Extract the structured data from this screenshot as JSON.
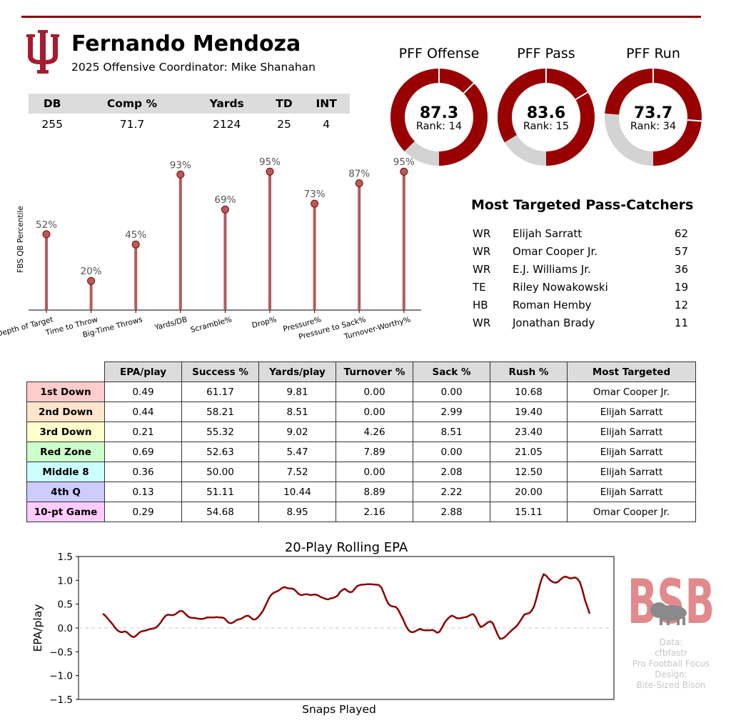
{
  "header": {
    "player_name": "Fernando Mendoza",
    "oc_line": "2025 Offensive Coordinator: Mike Shanahan",
    "logo_icon": "indiana-iu-trident-logo"
  },
  "colors": {
    "accent": "#990000",
    "ring_bg": "#d3d3d3",
    "lollipop": "#b35c5c",
    "muted": "#c6c6c6"
  },
  "summary_stats": {
    "headers": [
      "DB",
      "Comp %",
      "Yards",
      "TD",
      "INT"
    ],
    "values": [
      "255",
      "71.7",
      "2124",
      "25",
      "4"
    ]
  },
  "pff_grades": [
    {
      "title": "PFF Offense",
      "grade": "87.3",
      "rank": "Rank: 14",
      "value": 87.3
    },
    {
      "title": "PFF Pass",
      "grade": "83.6",
      "rank": "Rank: 15",
      "value": 83.6
    },
    {
      "title": "PFF Run",
      "grade": "73.7",
      "rank": "Rank: 34",
      "value": 73.7
    }
  ],
  "most_targeted": {
    "title": "Most Targeted Pass-Catchers",
    "rows": [
      {
        "pos": "WR",
        "name": "Elijah Sarratt",
        "targets": "62"
      },
      {
        "pos": "WR",
        "name": "Omar Cooper Jr.",
        "targets": "57"
      },
      {
        "pos": "WR",
        "name": "E.J. Williams Jr.",
        "targets": "36"
      },
      {
        "pos": "TE",
        "name": "Riley Nowakowski",
        "targets": "19"
      },
      {
        "pos": "HB",
        "name": "Roman Hemby",
        "targets": "12"
      },
      {
        "pos": "WR",
        "name": "Jonathan Brady",
        "targets": "11"
      }
    ]
  },
  "situational": {
    "headers": [
      "EPA/play",
      "Success %",
      "Yards/play",
      "Turnover %",
      "Sack %",
      "Rush %",
      "Most Targeted"
    ],
    "rows": [
      {
        "label": "1st Down",
        "color": "#ffcccc",
        "cells": [
          "0.49",
          "61.17",
          "9.81",
          "0.00",
          "0.00",
          "10.68",
          "Omar Cooper Jr."
        ]
      },
      {
        "label": "2nd Down",
        "color": "#ffe5cc",
        "cells": [
          "0.44",
          "58.21",
          "8.51",
          "0.00",
          "2.99",
          "19.40",
          "Elijah Sarratt"
        ]
      },
      {
        "label": "3rd Down",
        "color": "#ffffcc",
        "cells": [
          "0.21",
          "55.32",
          "9.02",
          "4.26",
          "8.51",
          "23.40",
          "Elijah Sarratt"
        ]
      },
      {
        "label": "Red Zone",
        "color": "#ccffcc",
        "cells": [
          "0.69",
          "52.63",
          "5.47",
          "7.89",
          "0.00",
          "21.05",
          "Elijah Sarratt"
        ]
      },
      {
        "label": "Middle 8",
        "color": "#ccffff",
        "cells": [
          "0.36",
          "50.00",
          "7.52",
          "0.00",
          "2.08",
          "12.50",
          "Elijah Sarratt"
        ]
      },
      {
        "label": "4th Q",
        "color": "#ccccff",
        "cells": [
          "0.13",
          "51.11",
          "10.44",
          "8.89",
          "2.22",
          "20.00",
          "Elijah Sarratt"
        ]
      },
      {
        "label": "10-pt Game",
        "color": "#ffccff",
        "cells": [
          "0.29",
          "54.68",
          "8.95",
          "2.16",
          "2.88",
          "15.11",
          "Omar Cooper Jr."
        ]
      }
    ]
  },
  "chart_data": [
    {
      "type": "bar",
      "style": "lollipop",
      "ylabel": "FBS QB Percentile",
      "xlabel": "",
      "ylim": [
        0,
        100
      ],
      "categories": [
        "Depth of Target",
        "Time to Throw",
        "Big-Time Throws",
        "Yards/DB",
        "Scramble%",
        "Drop%",
        "Pressure%",
        "Pressure to Sack%",
        "Turnover-Worthy%"
      ],
      "values": [
        52,
        20,
        45,
        93,
        69,
        95,
        73,
        87,
        95
      ],
      "value_labels": [
        "52%",
        "20%",
        "45%",
        "93%",
        "69%",
        "95%",
        "73%",
        "87%",
        "95%"
      ],
      "grid": false
    },
    {
      "type": "line",
      "title": "20-Play Rolling EPA",
      "xlabel": "Snaps Played",
      "ylabel": "EPA/play",
      "ylim": [
        -1.5,
        1.5
      ],
      "yticks": [
        "1.5",
        "1.0",
        "0.5",
        "0.0",
        "−0.5",
        "−1.0",
        "−1.5"
      ],
      "ytick_values": [
        1.5,
        1.0,
        0.5,
        0.0,
        -0.5,
        -1.0,
        -1.5
      ],
      "reference_line": 0.0,
      "grid": false,
      "series": [
        {
          "color": "#8b0000",
          "values": [
            0.3,
            0.26,
            0.2,
            0.14,
            0.08,
            0.01,
            -0.05,
            -0.08,
            -0.09,
            -0.07,
            -0.09,
            -0.14,
            -0.18,
            -0.19,
            -0.15,
            -0.1,
            -0.07,
            -0.06,
            -0.05,
            -0.03,
            -0.02,
            -0.01,
            0.01,
            0.06,
            0.12,
            0.2,
            0.26,
            0.28,
            0.27,
            0.27,
            0.29,
            0.33,
            0.36,
            0.35,
            0.3,
            0.25,
            0.22,
            0.21,
            0.21,
            0.2,
            0.19,
            0.19,
            0.2,
            0.22,
            0.22,
            0.22,
            0.22,
            0.23,
            0.22,
            0.22,
            0.21,
            0.16,
            0.11,
            0.1,
            0.12,
            0.16,
            0.18,
            0.19,
            0.22,
            0.25,
            0.26,
            0.22,
            0.18,
            0.18,
            0.22,
            0.28,
            0.35,
            0.45,
            0.56,
            0.66,
            0.72,
            0.75,
            0.77,
            0.8,
            0.84,
            0.86,
            0.84,
            0.83,
            0.83,
            0.81,
            0.76,
            0.71,
            0.69,
            0.7,
            0.71,
            0.7,
            0.69,
            0.7,
            0.7,
            0.68,
            0.65,
            0.63,
            0.61,
            0.6,
            0.62,
            0.63,
            0.65,
            0.68,
            0.76,
            0.8,
            0.82,
            0.78,
            0.75,
            0.76,
            0.82,
            0.88,
            0.9,
            0.91,
            0.91,
            0.92,
            0.92,
            0.92,
            0.91,
            0.91,
            0.9,
            0.85,
            0.73,
            0.6,
            0.5,
            0.46,
            0.45,
            0.44,
            0.38,
            0.28,
            0.18,
            0.06,
            -0.03,
            -0.08,
            -0.09,
            -0.07,
            -0.04,
            -0.02,
            -0.04,
            -0.05,
            -0.05,
            -0.05,
            -0.04,
            -0.06,
            -0.1,
            -0.08,
            0.0,
            0.1,
            0.17,
            0.22,
            0.26,
            0.24,
            0.21,
            0.2,
            0.21,
            0.22,
            0.23,
            0.25,
            0.28,
            0.29,
            0.22,
            0.1,
            0.02,
            0.04,
            0.08,
            0.12,
            0.14,
            0.1,
            -0.02,
            -0.14,
            -0.23,
            -0.22,
            -0.19,
            -0.14,
            -0.09,
            -0.04,
            0.0,
            0.05,
            0.12,
            0.2,
            0.28,
            0.3,
            0.31,
            0.36,
            0.45,
            0.62,
            0.82,
            1.0,
            1.13,
            1.1,
            1.04,
            0.99,
            0.96,
            0.95,
            0.97,
            1.02,
            1.06,
            1.08,
            1.06,
            1.04,
            1.05,
            1.06,
            1.03,
            0.96,
            0.8,
            0.6,
            0.45,
            0.3
          ]
        }
      ]
    }
  ],
  "bsb_logo": {
    "text": "BSB",
    "icon": "bison-icon"
  },
  "credits": [
    "Data:",
    "cfbfastr",
    "Pro Football Focus",
    "Design:",
    "Bite-Sized Bison"
  ]
}
